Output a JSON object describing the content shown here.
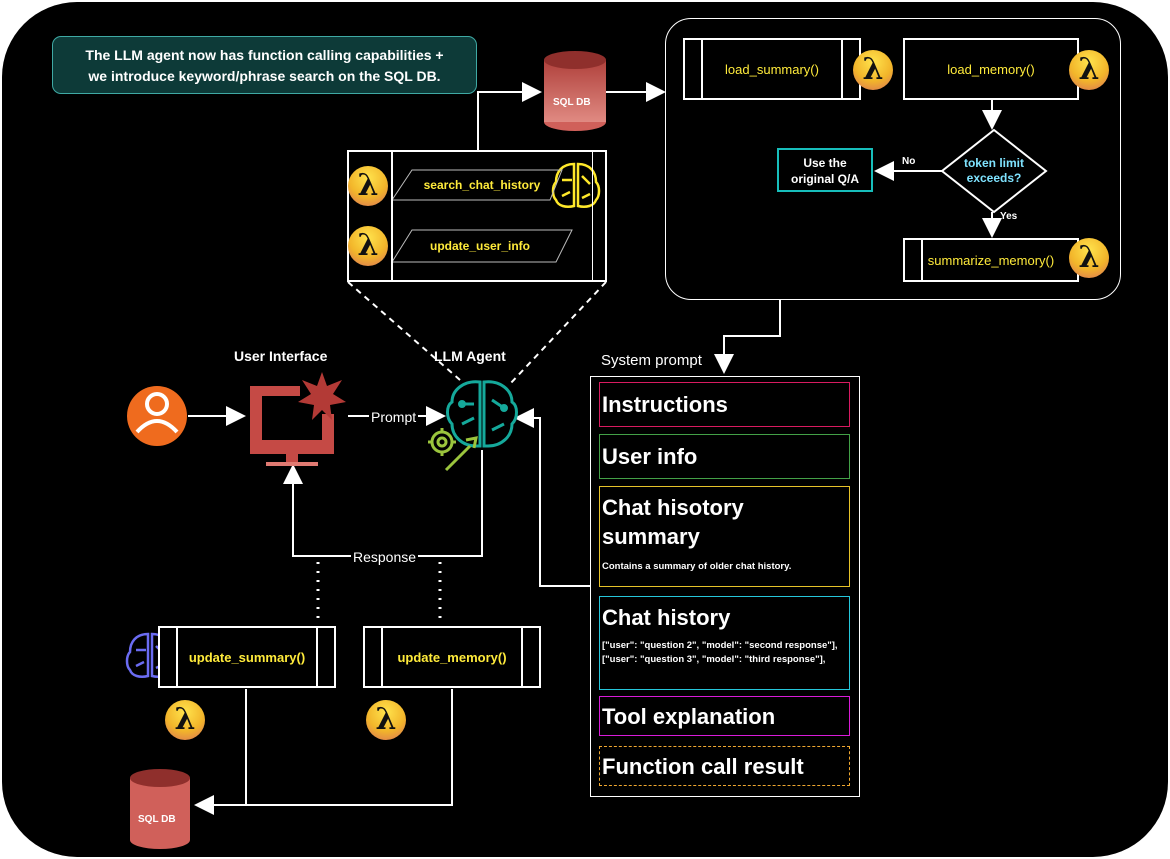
{
  "note": {
    "line1": "The LLM agent now has function calling capabilities +",
    "line2": "we introduce keyword/phrase search on the SQL DB."
  },
  "db": {
    "top_label": "SQL DB",
    "bottom_label": "SQL DB"
  },
  "memory_panel": {
    "load_summary": "load_summary()",
    "load_memory": "load_memory()",
    "decision": {
      "line1": "token limit",
      "line2": "exceeds?"
    },
    "fallback": {
      "line1": "Use the",
      "line2": "original Q/A"
    },
    "no_label": "No",
    "yes_label": "Yes",
    "summarize_memory": "summarize_memory()"
  },
  "tools": {
    "search": "search_chat_history",
    "update_user": "update_user_info"
  },
  "labels": {
    "user_interface": "User Interface",
    "llm_agent": "LLM Agent",
    "prompt": "Prompt",
    "response": "Response",
    "system_prompt": "System prompt"
  },
  "lambda_symbol": "λ",
  "bottom_functions": {
    "update_summary": "update_summary()",
    "update_memory": "update_memory()"
  },
  "system_prompt": {
    "instructions": "Instructions",
    "user_info": "User info",
    "chat_summary_title_1": "Chat hisotory",
    "chat_summary_title_2": "summary",
    "chat_summary_desc": "Contains a summary of older chat history.",
    "chat_history_title": "Chat history",
    "chat_history_line1": "[\"user\": \"question 2\", \"model\": \"second response\"],",
    "chat_history_line2": "[\"user\": \"question 3\", \"model\": \"third response\"],",
    "tool_explanation": "Tool explanation",
    "function_call_result": "Function call result"
  },
  "colors": {
    "background": "#000000",
    "note_bg": "#0d3a38",
    "db_top": "#b0413c",
    "db_light": "#e08a82",
    "fallback_border": "#17bebb",
    "decision_text": "#7fe3ff",
    "function_text": "#ffeb3b",
    "user_icon": "#ef6b1e",
    "agent_icon": "#15a99b",
    "instructions_border": "#d81b60",
    "user_info_border": "#43a047",
    "summary_border": "#e6c229",
    "history_border": "#26c6da",
    "tool_border": "#d81bd8",
    "result_border": "#f0a830"
  }
}
